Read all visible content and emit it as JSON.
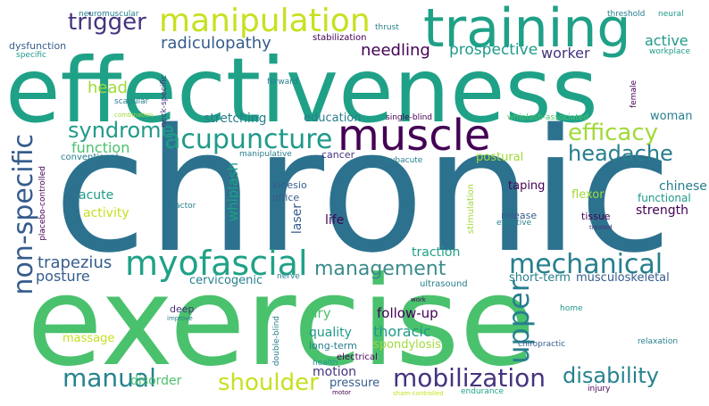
{
  "colors": {
    "dark_purple": "#440154",
    "indigo": "#46337e",
    "slate_blue": "#365c8d",
    "steel_blue": "#277f8e",
    "teal": "#1fa187",
    "green": "#4ac16d",
    "lime": "#a0da39",
    "yellow": "#fde725"
  },
  "words": {
    "effectiveness": "effectiveness",
    "chronic": "chronic",
    "exercise": "exercise",
    "training": "training",
    "manipulation": "manipulation",
    "muscle": "muscle",
    "acupuncture": "acupuncture",
    "myofascial": "myofascial",
    "mechanical": "mechanical",
    "non_specific": "non-specific",
    "upper": "upper",
    "trigger": "trigger",
    "syndrome": "syndrome",
    "efficacy": "efficacy",
    "headache": "headache",
    "management": "management",
    "manual": "manual",
    "mobilization": "mobilization",
    "disability": "disability",
    "shoulder": "shoulder",
    "radiculopathy": "radiculopathy",
    "needling": "needling",
    "prospective": "prospective",
    "worker": "worker",
    "active": "active",
    "head": "head",
    "trapezius": "trapezius",
    "posture": "posture",
    "function": "function",
    "activity": "activity",
    "acute": "acute",
    "stretching": "stretching",
    "education": "education",
    "woman": "woman",
    "whiplash": "whiplash",
    "laser": "laser",
    "life": "life",
    "kinesio": "kinesio",
    "office": "office",
    "postural": "postural",
    "chinese": "chinese",
    "functional": "functional",
    "strength": "strength",
    "flexor": "flexor",
    "taping": "taping",
    "release": "release",
    "tissue": "tissue",
    "traction": "traction",
    "short_term": "short-term",
    "musculoskeletal": "musculoskeletal",
    "cervicogenic": "cervicogenic",
    "dry": "dry",
    "quality": "quality",
    "follow_up": "follow-up",
    "thoracic": "thoracic",
    "spondylosis": "spondylosis",
    "massage": "massage",
    "disorder": "disorder",
    "motion": "motion",
    "pressure": "pressure",
    "long_term": "long-term",
    "deep": "deep",
    "dysfunction": "dysfunction",
    "stabilization": "stabilization",
    "cancer": "cancer",
    "conventional": "conventional",
    "neuromuscular": "neuromuscular",
    "threshold": "threshold",
    "neural": "neural",
    "thrust": "thrust",
    "injury": "injury",
    "workplace": "workplace",
    "specific": "specific",
    "forward": "forward",
    "scapular": "scapular",
    "combination": "combination",
    "neck_specific": "neck-specific",
    "female": "female",
    "single_blind": "single-blind",
    "whiplash_associated": "whiplash-associated",
    "subacute": "subacute",
    "manipulative": "manipulative",
    "placebo_controlled": "placebo-controlled",
    "factor": "factor",
    "stimulation": "stimulation",
    "effective": "effective",
    "treated": "treated",
    "ultrasound": "ultrasound",
    "nerve": "nerve",
    "improve": "improve",
    "double_blind": "double-blind",
    "work": "work",
    "electrical": "electrical",
    "health": "health",
    "home": "home",
    "chiropractic": "chiropractic",
    "relaxation": "relaxation",
    "sham_controlled": "sham-controlled",
    "endurance": "endurance",
    "motor": "motor"
  }
}
